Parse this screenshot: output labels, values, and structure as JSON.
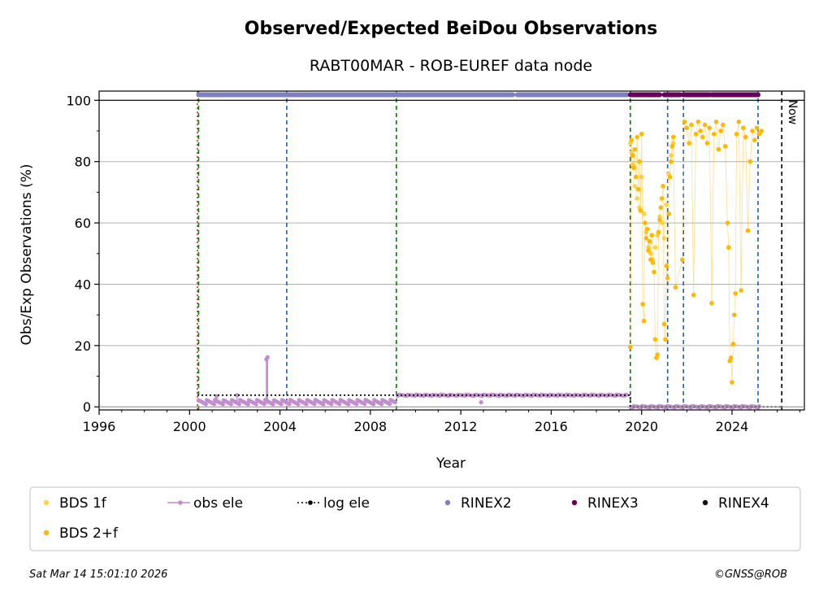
{
  "chart_data": {
    "type": "scatter",
    "title": "Observed/Expected BeiDou Observations",
    "subtitle": "RABT00MAR - ROB-EUREF data node",
    "xlabel": "Year",
    "ylabel": "Obs/Exp Observations (%)",
    "xlim": [
      1996,
      2027.2
    ],
    "ylim": [
      -1,
      103
    ],
    "x_ticks": [
      1996,
      2000,
      2004,
      2008,
      2012,
      2016,
      2020,
      2024
    ],
    "y_ticks": [
      0,
      20,
      40,
      60,
      80,
      100
    ],
    "grid": "y",
    "now_label": "Now",
    "now_x": 2026.2,
    "legend": {
      "placement": "bottom",
      "entries": [
        {
          "label": "BDS 1f",
          "color": "#fdd448",
          "marker": "dot"
        },
        {
          "label": "obs ele",
          "color": "#c38cd0",
          "marker": "dot-line"
        },
        {
          "label": "log ele",
          "color": "#000000",
          "marker": "dot-dotted-line"
        },
        {
          "label": "RINEX2",
          "color": "#7f7fbf",
          "marker": "dot"
        },
        {
          "label": "RINEX3",
          "color": "#68005b",
          "marker": "dot"
        },
        {
          "label": "RINEX4",
          "color": "#1a0a1a",
          "marker": "dot"
        },
        {
          "label": "BDS 2+f",
          "color": "#ffb800",
          "marker": "dot"
        }
      ]
    },
    "vlines": [
      {
        "x": 2000.35,
        "color": "#d62728",
        "style": "dotted"
      },
      {
        "x": 2000.4,
        "color": "#008000",
        "style": "dashed"
      },
      {
        "x": 2004.3,
        "color": "#1f5fb0",
        "style": "dashed"
      },
      {
        "x": 2009.15,
        "color": "#008000",
        "style": "dashed"
      },
      {
        "x": 2019.5,
        "color": "#008000",
        "style": "dashed"
      },
      {
        "x": 2021.15,
        "color": "#1f5fb0",
        "style": "dashed"
      },
      {
        "x": 2021.85,
        "color": "#1f5fb0",
        "style": "dashed"
      },
      {
        "x": 2025.15,
        "color": "#1f5fb0",
        "style": "dashed"
      },
      {
        "x": 2026.2,
        "color": "#000000",
        "style": "dashed"
      }
    ],
    "rinex2_segments": [
      [
        2000.4,
        2014.3
      ],
      [
        2014.5,
        2019.35
      ]
    ],
    "rinex3_segments": [
      [
        2019.5,
        2020.8
      ],
      [
        2021.0,
        2021.7
      ],
      [
        2021.85,
        2023.0
      ],
      [
        2023.1,
        2025.15
      ]
    ],
    "rinex_y": 101.8,
    "log_ele": [
      [
        2000.35,
        3.8
      ],
      [
        2009.15,
        3.8
      ],
      [
        2009.2,
        3.8
      ],
      [
        2019.5,
        3.8
      ],
      [
        2019.5,
        0
      ],
      [
        2026.2,
        0
      ]
    ],
    "obs_ele": {
      "segments": [
        {
          "x_start": 2000.4,
          "x_end": 2009.1,
          "y_min": 0.8,
          "y_max": 2.3
        },
        {
          "x_start": 2009.2,
          "x_end": 2019.35,
          "y_min": 3.6,
          "y_max": 4.0
        },
        {
          "x_start": 2019.5,
          "x_end": 2025.2,
          "y_min": -0.2,
          "y_max": 0.3
        }
      ],
      "spikes": [
        [
          2003.4,
          15.5
        ],
        [
          2003.45,
          16.2
        ],
        [
          2001.2,
          3.5
        ],
        [
          2002.1,
          3.8
        ],
        [
          2012.9,
          1.5
        ]
      ]
    },
    "bds_series": [
      {
        "name": "BDS 1f",
        "color": "#fdd448",
        "points": [
          [
            2019.5,
            86
          ],
          [
            2019.55,
            83
          ],
          [
            2019.6,
            79
          ],
          [
            2019.7,
            72
          ],
          [
            2019.8,
            68
          ],
          [
            2019.9,
            65
          ],
          [
            2020.0,
            75
          ],
          [
            2020.1,
            63
          ],
          [
            2020.2,
            57
          ],
          [
            2020.3,
            52
          ],
          [
            2020.4,
            50
          ],
          [
            2020.5,
            48
          ],
          [
            2020.6,
            52
          ],
          [
            2020.7,
            56
          ],
          [
            2020.8,
            62
          ],
          [
            2020.9,
            60
          ],
          [
            2021.0,
            55
          ],
          [
            2021.1,
            66
          ],
          [
            2021.2,
            76
          ],
          [
            2021.3,
            82
          ],
          [
            2021.4,
            86
          ]
        ]
      },
      {
        "name": "BDS 2+f",
        "color": "#ffb800",
        "points": [
          [
            2019.5,
            19.5
          ],
          [
            2019.55,
            87
          ],
          [
            2019.6,
            82
          ],
          [
            2019.65,
            78
          ],
          [
            2019.7,
            84
          ],
          [
            2019.75,
            75
          ],
          [
            2019.8,
            88
          ],
          [
            2019.85,
            71
          ],
          [
            2019.9,
            80
          ],
          [
            2019.95,
            64
          ],
          [
            2020.0,
            89
          ],
          [
            2020.05,
            33.5
          ],
          [
            2020.1,
            28
          ],
          [
            2020.15,
            60
          ],
          [
            2020.2,
            55
          ],
          [
            2020.25,
            58
          ],
          [
            2020.3,
            51
          ],
          [
            2020.35,
            54
          ],
          [
            2020.4,
            48
          ],
          [
            2020.45,
            56
          ],
          [
            2020.5,
            47
          ],
          [
            2020.55,
            44
          ],
          [
            2020.6,
            22
          ],
          [
            2020.65,
            16
          ],
          [
            2020.7,
            17
          ],
          [
            2020.75,
            57
          ],
          [
            2020.8,
            61
          ],
          [
            2020.85,
            65
          ],
          [
            2020.9,
            68
          ],
          [
            2020.95,
            72
          ],
          [
            2021.0,
            27
          ],
          [
            2021.05,
            22
          ],
          [
            2021.1,
            46
          ],
          [
            2021.15,
            42
          ],
          [
            2021.2,
            63
          ],
          [
            2021.25,
            75
          ],
          [
            2021.3,
            80
          ],
          [
            2021.35,
            85
          ],
          [
            2021.4,
            88
          ],
          [
            2021.5,
            39
          ],
          [
            2021.8,
            48
          ],
          [
            2021.9,
            93
          ],
          [
            2022.0,
            91
          ],
          [
            2022.1,
            86
          ],
          [
            2022.2,
            92
          ],
          [
            2022.3,
            36.5
          ],
          [
            2022.4,
            89
          ],
          [
            2022.5,
            93
          ],
          [
            2022.6,
            90
          ],
          [
            2022.7,
            88
          ],
          [
            2022.8,
            92
          ],
          [
            2022.9,
            86
          ],
          [
            2023.0,
            91
          ],
          [
            2023.1,
            33.8
          ],
          [
            2023.2,
            89
          ],
          [
            2023.3,
            93
          ],
          [
            2023.4,
            84
          ],
          [
            2023.5,
            90
          ],
          [
            2023.6,
            92
          ],
          [
            2023.7,
            85
          ],
          [
            2023.8,
            60
          ],
          [
            2023.85,
            52
          ],
          [
            2023.9,
            15
          ],
          [
            2023.95,
            16
          ],
          [
            2024.0,
            8
          ],
          [
            2024.05,
            20.5
          ],
          [
            2024.1,
            30
          ],
          [
            2024.15,
            37
          ],
          [
            2024.2,
            89
          ],
          [
            2024.3,
            93
          ],
          [
            2024.4,
            38
          ],
          [
            2024.5,
            91
          ],
          [
            2024.6,
            88
          ],
          [
            2024.7,
            57.5
          ],
          [
            2024.8,
            80
          ],
          [
            2024.9,
            90
          ],
          [
            2025.0,
            87
          ],
          [
            2025.1,
            91
          ],
          [
            2025.2,
            89
          ],
          [
            2025.3,
            90
          ]
        ]
      }
    ]
  },
  "footer": {
    "timestamp": "Sat Mar 14 15:01:10 2026",
    "credit": "©GNSS@ROB"
  }
}
